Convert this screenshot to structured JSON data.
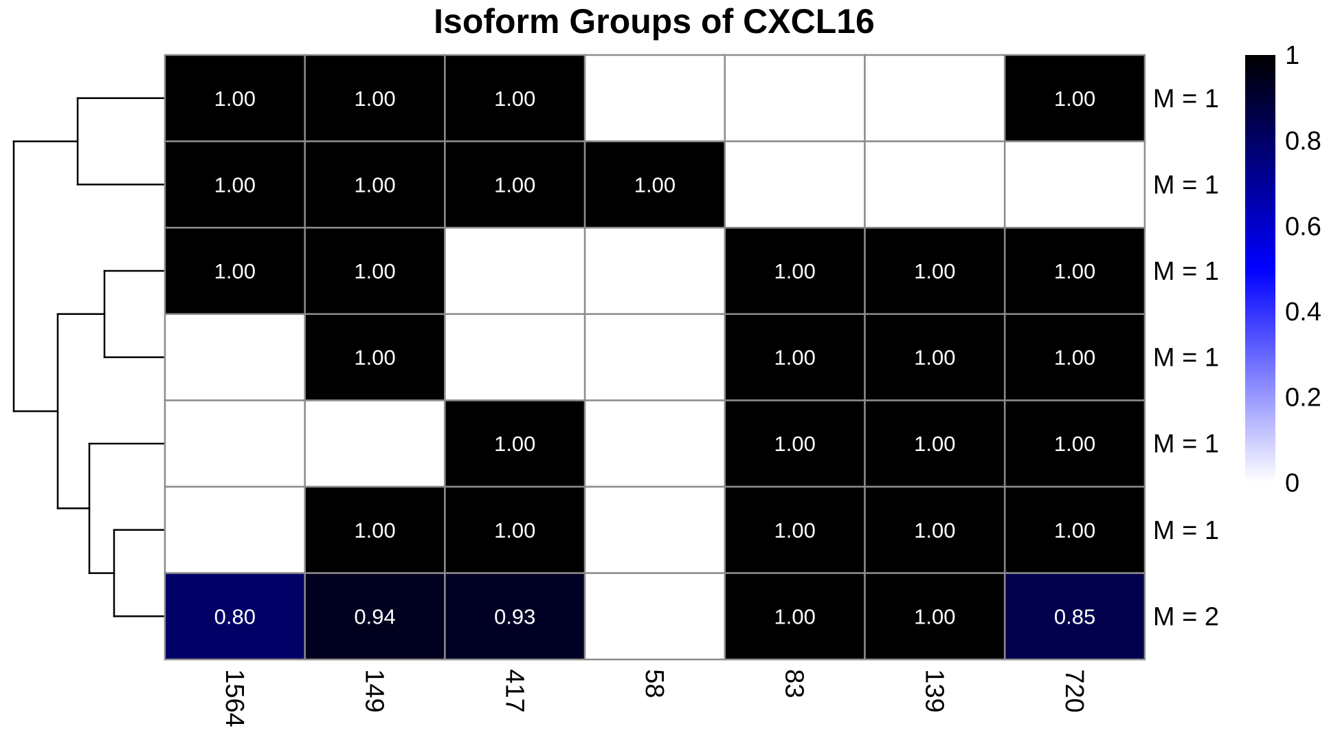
{
  "chart_data": {
    "type": "heatmap",
    "title": "Isoform Groups of CXCL16",
    "columns": [
      "1564",
      "149",
      "417",
      "58",
      "83",
      "139",
      "720"
    ],
    "rows": [
      "M = 1",
      "M = 1",
      "M = 1",
      "M = 1",
      "M = 1",
      "M = 1",
      "M = 2"
    ],
    "values": [
      [
        1.0,
        1.0,
        1.0,
        null,
        null,
        null,
        1.0
      ],
      [
        1.0,
        1.0,
        1.0,
        1.0,
        null,
        null,
        null
      ],
      [
        1.0,
        1.0,
        null,
        null,
        1.0,
        1.0,
        1.0
      ],
      [
        null,
        1.0,
        null,
        null,
        1.0,
        1.0,
        1.0
      ],
      [
        null,
        null,
        1.0,
        null,
        1.0,
        1.0,
        1.0
      ],
      [
        null,
        1.0,
        1.0,
        null,
        1.0,
        1.0,
        1.0
      ],
      [
        0.8,
        0.94,
        0.93,
        null,
        1.0,
        1.0,
        0.85
      ]
    ],
    "cell_labels": [
      [
        "1.00",
        "1.00",
        "1.00",
        "",
        "",
        "",
        "1.00"
      ],
      [
        "1.00",
        "1.00",
        "1.00",
        "1.00",
        "",
        "",
        ""
      ],
      [
        "1.00",
        "1.00",
        "",
        "",
        "1.00",
        "1.00",
        "1.00"
      ],
      [
        "",
        "1.00",
        "",
        "",
        "1.00",
        "1.00",
        "1.00"
      ],
      [
        "",
        "",
        "1.00",
        "",
        "1.00",
        "1.00",
        "1.00"
      ],
      [
        "",
        "1.00",
        "1.00",
        "",
        "1.00",
        "1.00",
        "1.00"
      ],
      [
        "0.80",
        "0.94",
        "0.93",
        "",
        "1.00",
        "1.00",
        "0.85"
      ]
    ],
    "color_scale": {
      "low": "#ffffff",
      "mid": "#0000ff",
      "high": "#000000",
      "range": [
        0,
        1
      ],
      "ticks": [
        "1",
        "0.8",
        "0.6",
        "0.4",
        "0.2",
        "0"
      ]
    },
    "grid_color": "#8c8c8c",
    "dendrogram": "rows",
    "legend_placement": "right",
    "x_tick_rotation": "90deg clockwise"
  }
}
